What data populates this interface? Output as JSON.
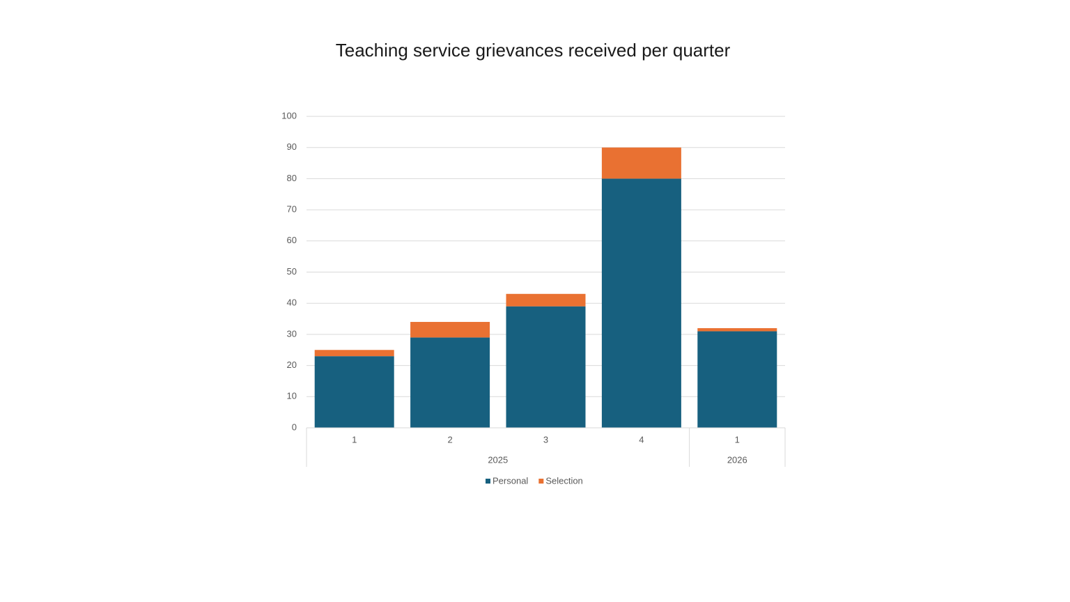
{
  "chart_data": {
    "type": "stacked-bar",
    "title": "Teaching service grievances received per quarter",
    "category_groups": [
      {
        "name": "2025",
        "categories": [
          "1",
          "2",
          "3",
          "4"
        ]
      },
      {
        "name": "2026",
        "categories": [
          "1"
        ]
      }
    ],
    "series": [
      {
        "name": "Personal",
        "color": "#17607f",
        "values": [
          23,
          29,
          39,
          80,
          31
        ]
      },
      {
        "name": "Selection",
        "color": "#e97132",
        "values": [
          2,
          5,
          4,
          10,
          1
        ]
      }
    ],
    "ylim": [
      0,
      100
    ],
    "yticks": [
      0,
      10,
      20,
      30,
      40,
      50,
      60,
      70,
      80,
      90,
      100
    ],
    "grid": true,
    "legend": "bottom"
  }
}
